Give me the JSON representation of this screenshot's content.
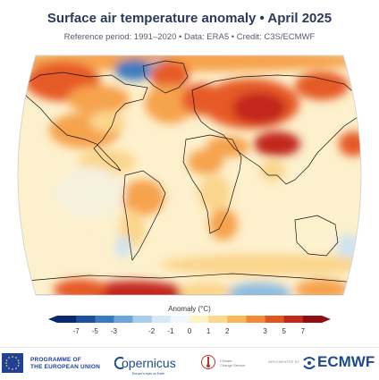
{
  "header": {
    "title": "Surface air temperature anomaly • April 2025",
    "subtitle": "Reference period: 1991–2020 • Data: ERA5 • Credit: C3S/ECMWF"
  },
  "legend": {
    "title": "Anomaly (°C)",
    "ticks": [
      "-7",
      "-5",
      "-3",
      "-2",
      "-1",
      "0",
      "1",
      "2",
      "3",
      "5",
      "7"
    ],
    "colors": [
      "#0b2a6b",
      "#1d4f9a",
      "#3a7bbf",
      "#6aa6d8",
      "#a6cdea",
      "#d7e9f5",
      "#f1f7fb",
      "#fdf3c4",
      "#fbd98a",
      "#f8b85a",
      "#f28a35",
      "#e0551f",
      "#c0281a",
      "#8f0f12"
    ]
  },
  "map": {
    "projection": "Robinson",
    "palette": {
      "strong_warm": "#c2281c",
      "warm": "#e65a25",
      "mild_warm": "#f6a34e",
      "slight_warm": "#fbd58c",
      "neutral": "#fdf2d0",
      "slight_cool": "#cfe3f1",
      "cool": "#8fbde0",
      "strong_cool": "#3d7cc0"
    }
  },
  "footer": {
    "eu_line1": "PROGRAMME OF",
    "eu_line2": "THE EUROPEAN UNION",
    "copernicus": "opernicus",
    "copernicus_sub": "Europe's eyes on Earth",
    "c3s_line1": "Climate",
    "c3s_line2": "Change Service",
    "implemented_by": "IMPLEMENTED BY",
    "ecmwf": "ECMWF"
  }
}
